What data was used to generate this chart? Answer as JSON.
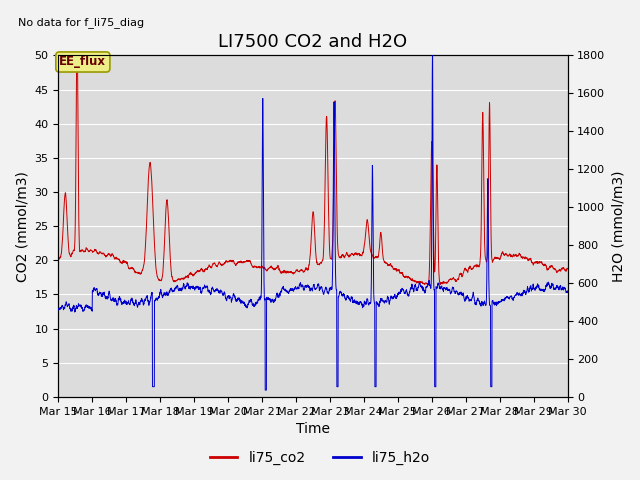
{
  "title": "LI7500 CO2 and H2O",
  "top_left_text": "No data for f_li75_diag",
  "xlabel": "Time",
  "ylabel_left": "CO2 (mmol/m3)",
  "ylabel_right": "H2O (mmol/m3)",
  "ylim_left": [
    0,
    50
  ],
  "ylim_right": [
    0,
    1800
  ],
  "yticks_left": [
    0,
    5,
    10,
    15,
    20,
    25,
    30,
    35,
    40,
    45,
    50
  ],
  "yticks_right": [
    0,
    200,
    400,
    600,
    800,
    1000,
    1200,
    1400,
    1600,
    1800
  ],
  "xtick_labels": [
    "Mar 15",
    "Mar 16",
    "Mar 17",
    "Mar 18",
    "Mar 19",
    "Mar 20",
    "Mar 21",
    "Mar 22",
    "Mar 23",
    "Mar 24",
    "Mar 25",
    "Mar 26",
    "Mar 27",
    "Mar 28",
    "Mar 29",
    "Mar 30"
  ],
  "legend_labels": [
    "li75_co2",
    "li75_h2o"
  ],
  "legend_colors": [
    "#cc0000",
    "#0000cc"
  ],
  "co2_color": "#cc0000",
  "h2o_color": "#0000cc",
  "axes_background": "#dcdcdc",
  "grid_color": "#ffffff",
  "ee_flux_label": "EE_flux",
  "ee_flux_facecolor": "#eeee88",
  "ee_flux_edgecolor": "#999900",
  "title_fontsize": 13,
  "axis_label_fontsize": 10,
  "tick_fontsize": 8,
  "legend_fontsize": 10,
  "n_days": 15,
  "n_points": 3000
}
